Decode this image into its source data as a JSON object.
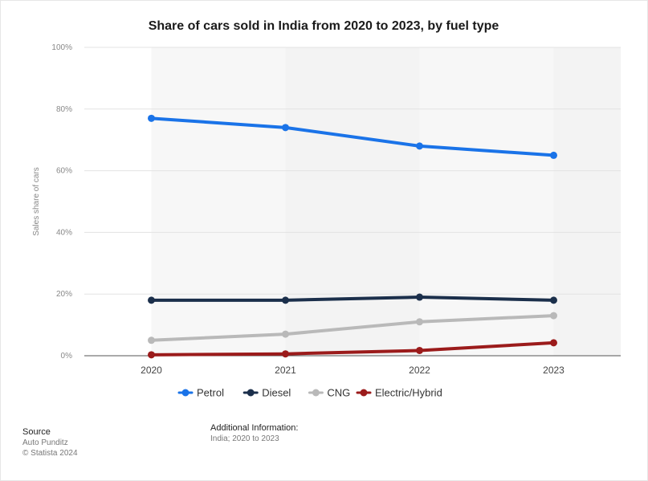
{
  "chart_data": {
    "type": "line",
    "title": "Share of cars sold in India from 2020 to 2023, by fuel type",
    "ylabel": "Sales share of cars",
    "xlabel": "",
    "categories": [
      "2020",
      "2021",
      "2022",
      "2023"
    ],
    "ylim": [
      0,
      100
    ],
    "yticks": [
      0,
      20,
      40,
      60,
      80,
      100
    ],
    "ytick_labels": [
      "0%",
      "20%",
      "40%",
      "60%",
      "80%",
      "100%"
    ],
    "grid": true,
    "legend_position": "bottom",
    "series": [
      {
        "name": "Petrol",
        "color": "#1a73e8",
        "values": [
          77,
          74,
          68,
          65
        ]
      },
      {
        "name": "Diesel",
        "color": "#1b2f4b",
        "values": [
          18,
          18,
          19,
          18
        ]
      },
      {
        "name": "CNG",
        "color": "#b9b9b9",
        "values": [
          5,
          7,
          11,
          13
        ]
      },
      {
        "name": "Electric/Hybrid",
        "color": "#9b1b1b",
        "values": [
          0.3,
          0.6,
          1.7,
          4.2
        ]
      }
    ]
  },
  "footer": {
    "source_heading": "Source",
    "source_name": "Auto Punditz",
    "copyright": "© Statista 2024",
    "additional_heading": "Additional Information:",
    "additional_text": "India; 2020 to 2023"
  }
}
